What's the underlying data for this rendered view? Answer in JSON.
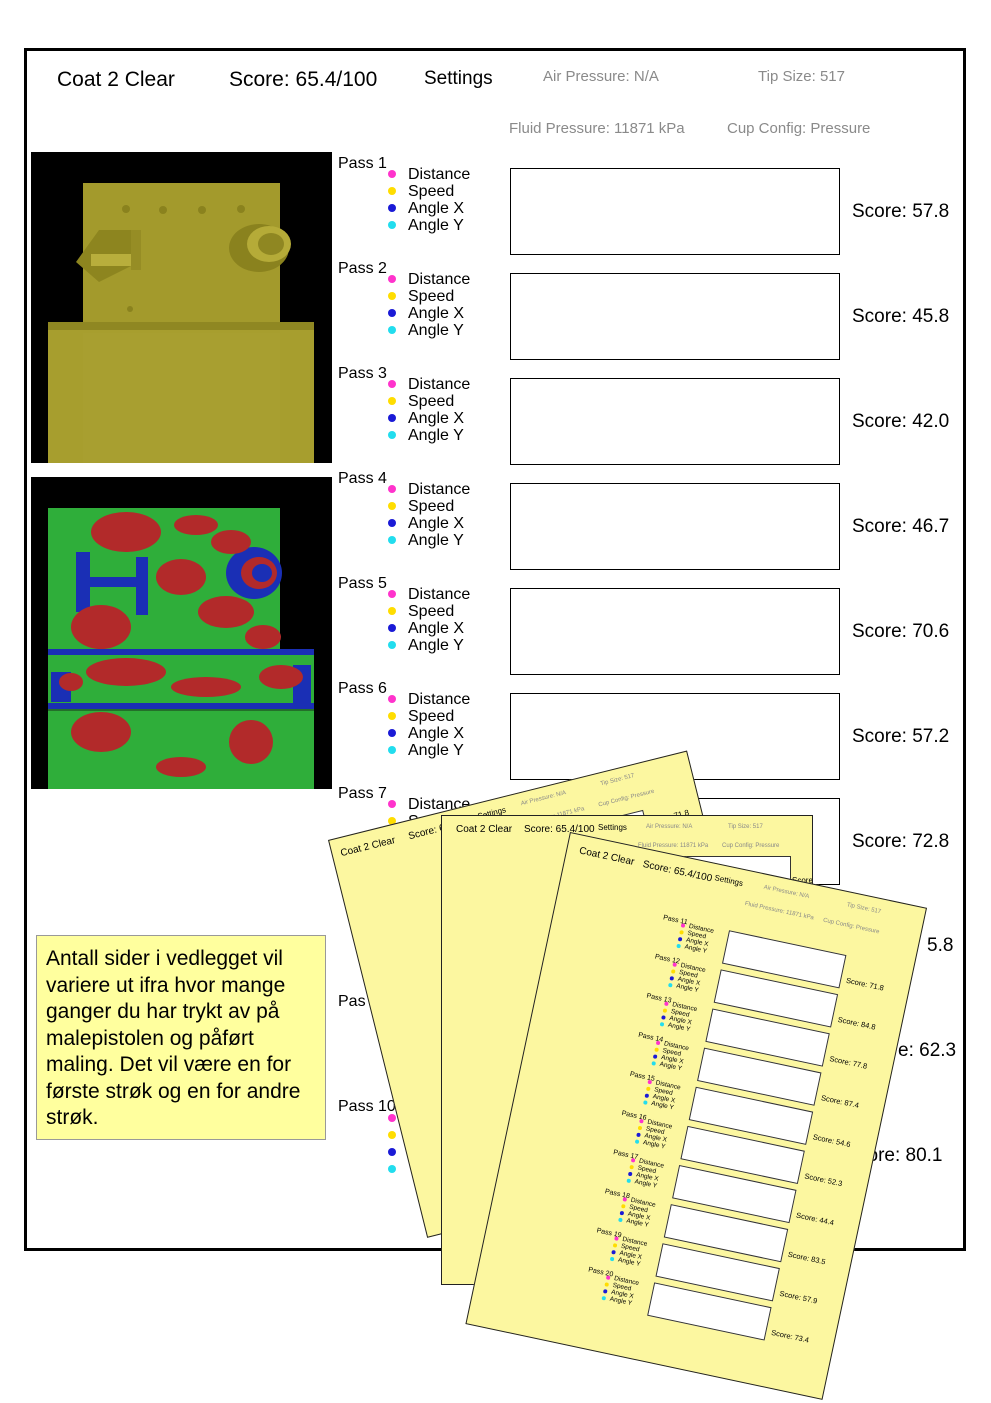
{
  "header": {
    "title": "Coat 2 Clear",
    "score": "Score: 65.4/100",
    "settings": "Settings",
    "air_pressure": "Air Pressure: N/A",
    "tip_size": "Tip Size: 517",
    "fluid_pressure": "Fluid Pressure: 11871 kPa",
    "cup_config": "Cup Config: Pressure"
  },
  "legend": {
    "items": [
      {
        "label": "Distance",
        "color": "#ff33cc"
      },
      {
        "label": "Speed",
        "color": "#ffdd00"
      },
      {
        "label": "Angle X",
        "color": "#1a1ad6"
      },
      {
        "label": "Angle Y",
        "color": "#22ddee"
      }
    ]
  },
  "passes": [
    {
      "label": "Pass 1",
      "score": "Score: 57.8"
    },
    {
      "label": "Pass 2",
      "score": "Score: 45.8"
    },
    {
      "label": "Pass 3",
      "score": "Score: 42.0"
    },
    {
      "label": "Pass 4",
      "score": "Score: 46.7"
    },
    {
      "label": "Pass 5",
      "score": "Score: 70.6"
    },
    {
      "label": "Pass 6",
      "score": "Score: 57.2"
    },
    {
      "label": "Pass 7",
      "score": "Score: 72.8"
    }
  ],
  "partial_passes": {
    "pass9_label_fragment": "Pas",
    "pass10_label_fragment": "Pass 10",
    "pass8_score_fragment": "5.8",
    "pass9_score_fragment": "e: 62.3",
    "pass10_score_fragment": "core: 80.1"
  },
  "note": {
    "text": "Antall sider i vedlegget vil variere ut ifra hvor mange ganger du har trykt av på malepistolen og påført maling. Det vil være en for første strøk og en for andre strøk."
  },
  "sheets": {
    "title": "Coat 2 Clear",
    "score": "Score: 65.4/100",
    "settings": "Settings",
    "air_pressure": "Air Pressure: N/A",
    "tip_size": "Tip Size: 517",
    "fluid_pressure": "Fluid Pressure: 11871 kPa",
    "cup_config": "Cup Config: Pressure",
    "back_score_fragment": "Score: 71.8",
    "middle_score_fragment": "Score: 71.8",
    "front_passes": [
      {
        "label": "Pass 11",
        "score": "Score: 71.8"
      },
      {
        "label": "Pass 12",
        "score": "Score: 84.8"
      },
      {
        "label": "Pass 13",
        "score": "Score: 77.8"
      },
      {
        "label": "Pass 14",
        "score": "Score: 87.4"
      },
      {
        "label": "Pass 15",
        "score": "Score: 54.6"
      },
      {
        "label": "Pass 16",
        "score": "Score: 52.3"
      },
      {
        "label": "Pass 17",
        "score": "Score: 44.4"
      },
      {
        "label": "Pass 18",
        "score": "Score: 83.5"
      },
      {
        "label": "Pass 19",
        "score": "Score: 57.9"
      },
      {
        "label": "Pass 20",
        "score": "Score: 73.4"
      }
    ]
  }
}
